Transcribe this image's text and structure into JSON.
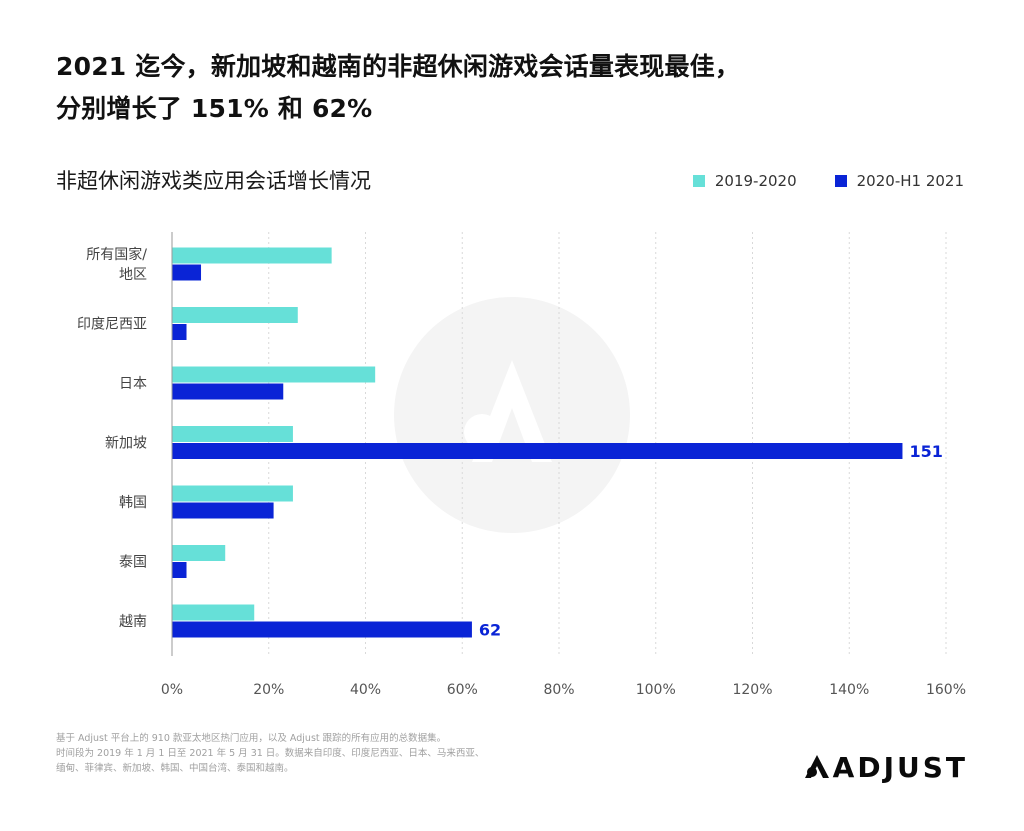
{
  "headline": {
    "line1": "2021 迄今，新加坡和越南的非超休闲游戏会话量表现最佳，",
    "line2": "分别增长了 151% 和 62%"
  },
  "colors": {
    "series_2019_2020": "#66e0d8",
    "series_2020_h1_2021": "#0a24d6",
    "gridline": "#d9d9d9",
    "axis": "#9a9a9a",
    "value_label": "#0a24d6"
  },
  "footnote": {
    "line1": "基于 Adjust 平台上的 910 款亚太地区热门应用，以及 Adjust 跟踪的所有应用的总数据集。",
    "line2": "时间段为 2019 年 1 月 1 日至 2021 年 5 月 31 日。数据来自印度、印度尼西亚、日本、马来西亚、",
    "line3": "缅甸、菲律宾、新加坡、韩国、中国台湾、泰国和越南。"
  },
  "logo": {
    "text": "ADJUST"
  },
  "chart_data": {
    "type": "bar",
    "orientation": "horizontal",
    "title": "非超休闲游戏类应用会话增长情况",
    "categories": [
      "所有国家/地区",
      "印度尼西亚",
      "日本",
      "新加坡",
      "韩国",
      "泰国",
      "越南"
    ],
    "category_lines": [
      [
        "所有国家/",
        "地区"
      ],
      [
        "印度尼西亚"
      ],
      [
        "日本"
      ],
      [
        "新加坡"
      ],
      [
        "韩国"
      ],
      [
        "泰国"
      ],
      [
        "越南"
      ]
    ],
    "series": [
      {
        "name": "2019-2020",
        "values": [
          33,
          26,
          42,
          25,
          25,
          11,
          17
        ]
      },
      {
        "name": "2020-H1 2021",
        "values": [
          6,
          3,
          23,
          151,
          21,
          3,
          62
        ]
      }
    ],
    "data_labels": [
      {
        "series": 1,
        "category": 3,
        "text": "151"
      },
      {
        "series": 1,
        "category": 6,
        "text": "62"
      }
    ],
    "xlim": [
      0,
      160
    ],
    "xticks": [
      "0%",
      "20%",
      "40%",
      "60%",
      "80%",
      "100%",
      "120%",
      "140%",
      "160%"
    ],
    "xtick_values": [
      0,
      20,
      40,
      60,
      80,
      100,
      120,
      140,
      160
    ],
    "grid": true,
    "legend": "top-right"
  }
}
